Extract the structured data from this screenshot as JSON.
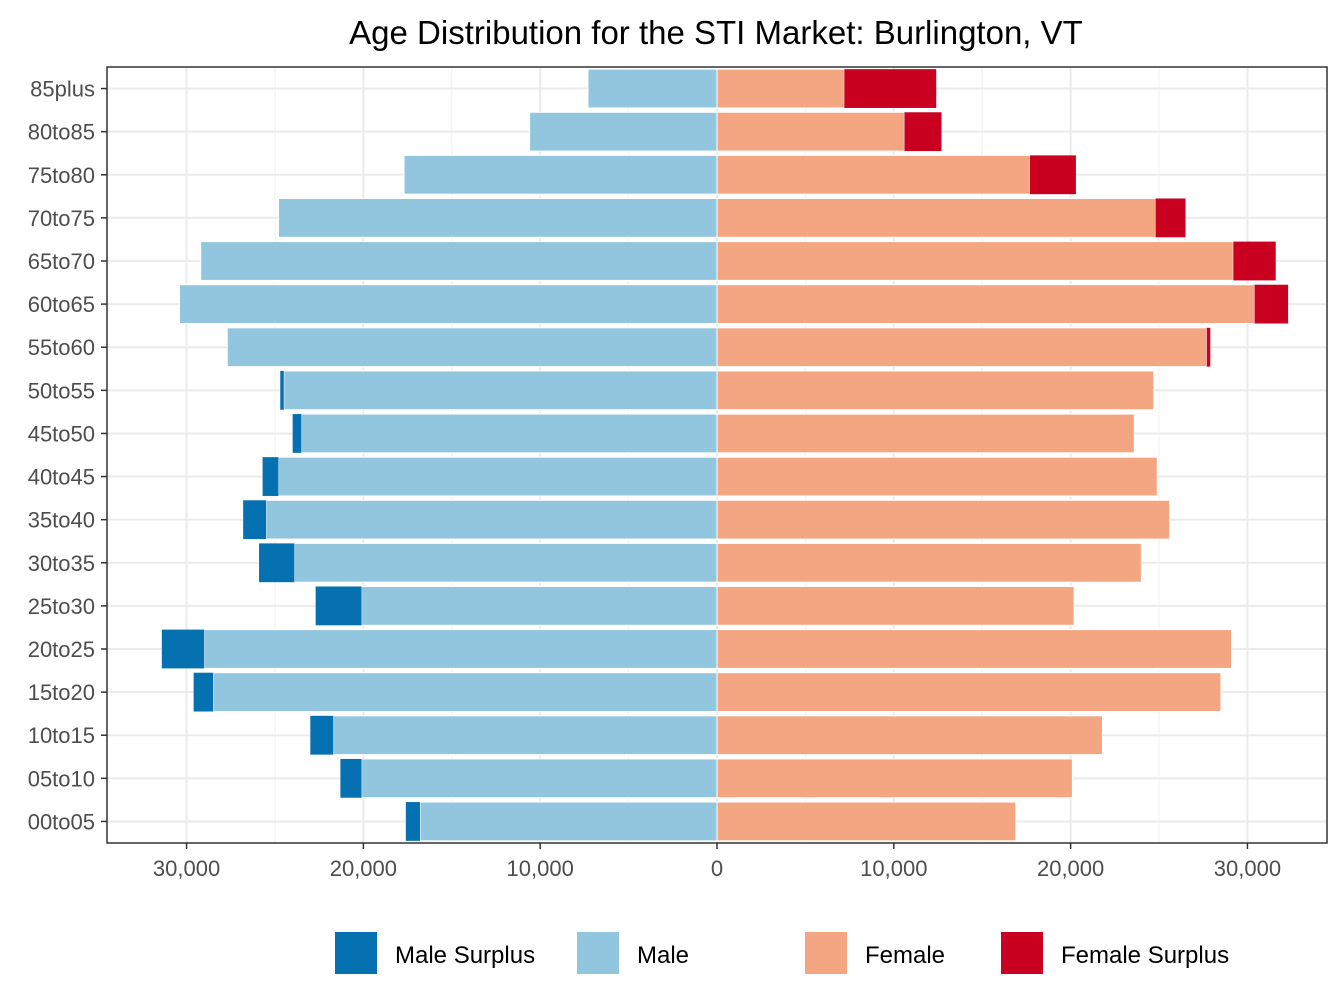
{
  "chart_data": {
    "type": "bar",
    "orientation": "horizontal-diverging",
    "title": "Age Distribution for the STI Market: Burlington, VT",
    "xlabel": "",
    "ylabel": "",
    "xlim": [
      -34500,
      34500
    ],
    "x_ticks": [
      -30000,
      -20000,
      -10000,
      0,
      10000,
      20000,
      30000
    ],
    "x_tick_labels": [
      "30,000",
      "20,000",
      "10,000",
      "0",
      "10,000",
      "20,000",
      "30,000"
    ],
    "categories": [
      "00to05",
      "05to10",
      "10to15",
      "15to20",
      "20to25",
      "25to30",
      "30to35",
      "35to40",
      "40to45",
      "45to50",
      "50to55",
      "55to60",
      "60to65",
      "65to70",
      "70to75",
      "75to80",
      "80to85",
      "85plus"
    ],
    "series": [
      {
        "name": "Male",
        "side": "left",
        "color": "#92c5de",
        "values": [
          16800,
          20100,
          21700,
          28500,
          29000,
          20100,
          23900,
          25500,
          24800,
          23500,
          24500,
          27700,
          30400,
          29200,
          24800,
          17700,
          10600,
          7300
        ]
      },
      {
        "name": "Male Surplus",
        "side": "left",
        "color": "#0571b0",
        "values": [
          800,
          1200,
          1300,
          1100,
          2400,
          2600,
          2000,
          1300,
          900,
          500,
          200,
          0,
          0,
          0,
          0,
          0,
          0,
          0
        ]
      },
      {
        "name": "Female",
        "side": "right",
        "color": "#f4a582",
        "values": [
          16900,
          20100,
          21800,
          28500,
          29100,
          20200,
          24000,
          25600,
          24900,
          23600,
          24700,
          27700,
          30400,
          29200,
          24800,
          17700,
          10600,
          7200
        ]
      },
      {
        "name": "Female Surplus",
        "side": "right",
        "color": "#ca0020",
        "values": [
          0,
          0,
          0,
          0,
          0,
          0,
          0,
          0,
          0,
          0,
          0,
          200,
          1900,
          2400,
          1700,
          2600,
          2100,
          5200
        ]
      }
    ],
    "legend": {
      "position": "bottom",
      "order": [
        "Male Surplus",
        "Male",
        "Female",
        "Female Surplus"
      ]
    },
    "grid": true
  }
}
